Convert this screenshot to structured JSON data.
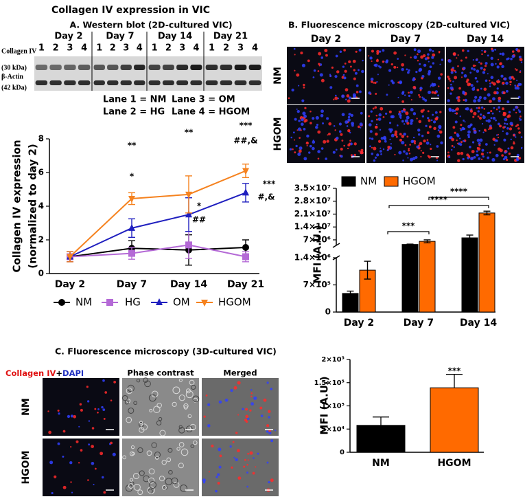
{
  "title": "Collagen IV expression in VIC",
  "panel_a": {
    "title": "A. Western blot (2D-cultured VIC)",
    "days": [
      "Day 2",
      "Day 7",
      "Day 14",
      "Day 21"
    ],
    "lanes": [
      "1",
      "2",
      "3",
      "4"
    ],
    "row_labels": [
      "Collagen IV",
      "(30 kDa)",
      "β-Actin",
      "(42 kDa)"
    ],
    "lane_key": [
      "Lane 1 = NM",
      "Lane 3 = OM",
      "Lane 2 = HG",
      "Lane 4 = HGOM"
    ]
  },
  "panel_b": {
    "title": "B. Fluorescence microscopy (2D-cultured VIC)",
    "columns": [
      "Day 2",
      "Day 7",
      "Day 14"
    ],
    "rows": [
      "NM",
      "HGOM"
    ]
  },
  "panel_c": {
    "title": "C. Fluorescence microscopy (3D-cultured VIC)",
    "columns": [
      "Collagen IV",
      "+",
      "DAPI",
      "Phase contrast",
      "Merged"
    ],
    "rows": [
      "NM",
      "HGOM"
    ]
  },
  "chart_data": [
    {
      "type": "line",
      "ylabel": [
        "Collagen IV expression",
        "(normalized to day 2)"
      ],
      "categories": [
        "Day 2",
        "Day 7",
        "Day 14",
        "Day 21"
      ],
      "ylim": [
        0,
        8
      ],
      "yticks": [
        0,
        2,
        4,
        6,
        8
      ],
      "series": [
        {
          "name": "NM",
          "color": "#000000",
          "marker": "circle",
          "values": [
            1,
            1.5,
            1.4,
            1.55
          ],
          "errors": [
            0.3,
            0.45,
            0.9,
            0.45
          ]
        },
        {
          "name": "HG",
          "color": "#b469d6",
          "marker": "square",
          "values": [
            1,
            1.2,
            1.7,
            1.0
          ],
          "errors": [
            0.3,
            0.35,
            0.8,
            0.3
          ]
        },
        {
          "name": "OM",
          "color": "#1f1fbf",
          "marker": "triangle",
          "values": [
            1,
            2.7,
            3.5,
            4.8
          ],
          "errors": [
            0.3,
            0.55,
            1.0,
            0.55
          ]
        },
        {
          "name": "HGOM",
          "color": "#f5821f",
          "marker": "triangle-down",
          "values": [
            1,
            4.45,
            4.7,
            6.1
          ],
          "errors": [
            0.3,
            0.35,
            1.1,
            0.4
          ]
        }
      ],
      "annotations": [
        "**",
        "*",
        "**",
        "*",
        "##",
        "***",
        "##,&",
        "***",
        "#,&"
      ],
      "legend": "bottom"
    },
    {
      "type": "bar",
      "ylabel": "MFI (A.U.)",
      "categories": [
        "Day 2",
        "Day 7",
        "Day 14"
      ],
      "ylim": [
        0,
        35000000
      ],
      "ybreak": [
        1400000,
        4000000
      ],
      "yticks": [
        0,
        {
          "value": 700000,
          "label": "7×10⁵"
        },
        {
          "value": 1400000,
          "label": "1.4×10⁶"
        },
        {
          "value": 7000000,
          "label": "7×10⁶"
        },
        {
          "value": 14000000,
          "label": "1.4×10⁷"
        },
        {
          "value": 21000000,
          "label": "2.1×10⁷"
        },
        {
          "value": 28000000,
          "label": "2.8×10⁷"
        },
        {
          "value": 35000000,
          "label": "3.5×10⁷"
        }
      ],
      "series": [
        {
          "name": "NM",
          "color": "#000000",
          "values": [
            480000,
            4500000,
            8100000
          ],
          "errors": [
            60000,
            200000,
            1500000
          ]
        },
        {
          "name": "HGOM",
          "color": "#ff6a00",
          "values": [
            1080000,
            6200000,
            21600000
          ],
          "errors": [
            230000,
            800000,
            1000000
          ]
        }
      ],
      "annotations": [
        "***",
        "****",
        "****"
      ],
      "legend": "top"
    },
    {
      "type": "bar",
      "ylabel": "MFI (A.U.)",
      "categories": [
        "NM",
        "HGOM"
      ],
      "values": [
        58000,
        139000
      ],
      "errors": [
        18000,
        29000
      ],
      "colors": [
        "#000000",
        "#ff6a00"
      ],
      "ylim": [
        0,
        200000
      ],
      "yticks": [
        0,
        {
          "value": 50000,
          "label": "5×10⁴"
        },
        {
          "value": 100000,
          "label": "1×10⁵"
        },
        {
          "value": 150000,
          "label": "1.5×10⁵"
        },
        {
          "value": 200000,
          "label": "2×10⁵"
        }
      ],
      "annotations": [
        "***"
      ]
    }
  ]
}
